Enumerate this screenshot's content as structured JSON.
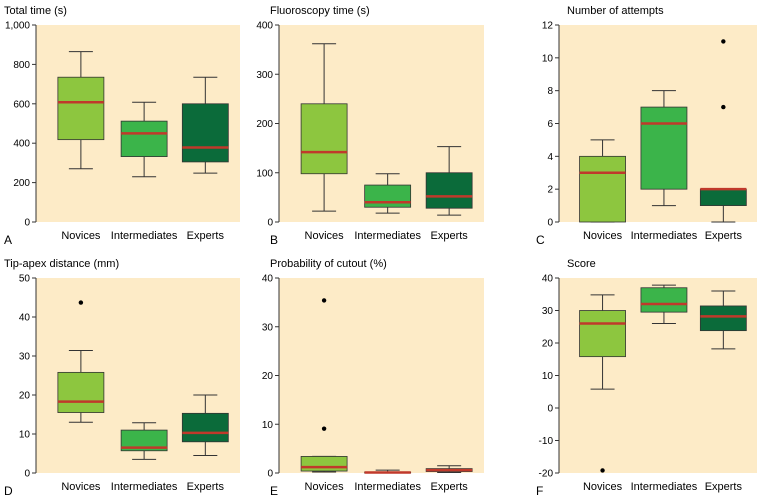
{
  "chart_data": [
    {
      "type": "box",
      "panel": "A",
      "title": "Total time (s)",
      "categories": [
        "Novices",
        "Intermediates",
        "Experts"
      ],
      "yticks": [
        0,
        200,
        400,
        600,
        800,
        1000
      ],
      "ytick_labels": [
        "0",
        "200",
        "400",
        "600",
        "800",
        "1,000"
      ],
      "ylim": [
        0,
        1000
      ],
      "boxes": [
        {
          "whisker_low": 270,
          "q1": 418,
          "median": 608,
          "q3": 735,
          "whisker_high": 865,
          "outliers": [],
          "color": "#8dc63f"
        },
        {
          "whisker_low": 230,
          "q1": 332,
          "median": 450,
          "q3": 512,
          "whisker_high": 608,
          "outliers": [],
          "color": "#3bb44a"
        },
        {
          "whisker_low": 248,
          "q1": 305,
          "median": 378,
          "q3": 600,
          "whisker_high": 735,
          "outliers": [],
          "color": "#0b6b3a"
        }
      ]
    },
    {
      "type": "box",
      "panel": "B",
      "title": "Fluoroscopy time (s)",
      "categories": [
        "Novices",
        "Intermediates",
        "Experts"
      ],
      "yticks": [
        0,
        100,
        200,
        300,
        400
      ],
      "ytick_labels": [
        "0",
        "100",
        "200",
        "300",
        "400"
      ],
      "ylim": [
        0,
        400
      ],
      "boxes": [
        {
          "whisker_low": 22,
          "q1": 98,
          "median": 142,
          "q3": 240,
          "whisker_high": 362,
          "outliers": [],
          "color": "#8dc63f"
        },
        {
          "whisker_low": 18,
          "q1": 30,
          "median": 40,
          "q3": 75,
          "whisker_high": 98,
          "outliers": [],
          "color": "#3bb44a"
        },
        {
          "whisker_low": 14,
          "q1": 28,
          "median": 52,
          "q3": 100,
          "whisker_high": 153,
          "outliers": [],
          "color": "#0b6b3a"
        }
      ]
    },
    {
      "type": "box",
      "panel": "C",
      "title": "Number of attempts",
      "categories": [
        "Novices",
        "Intermediates",
        "Experts"
      ],
      "yticks": [
        0,
        2,
        4,
        6,
        8,
        10,
        12
      ],
      "ytick_labels": [
        "0",
        "2",
        "4",
        "6",
        "8",
        "10",
        "12"
      ],
      "ylim": [
        0,
        12
      ],
      "boxes": [
        {
          "whisker_low": 0,
          "q1": 0,
          "median": 3,
          "q3": 4,
          "whisker_high": 5,
          "outliers": [],
          "color": "#8dc63f"
        },
        {
          "whisker_low": 1,
          "q1": 2,
          "median": 6,
          "q3": 7,
          "whisker_high": 8,
          "outliers": [],
          "color": "#3bb44a"
        },
        {
          "whisker_low": 0,
          "q1": 1,
          "median": 2,
          "q3": 2,
          "whisker_high": 2,
          "outliers": [
            7,
            11
          ],
          "color": "#0b6b3a"
        }
      ]
    },
    {
      "type": "box",
      "panel": "D",
      "title": "Tip-apex distance (mm)",
      "categories": [
        "Novices",
        "Intermediates",
        "Experts"
      ],
      "yticks": [
        0,
        10,
        20,
        30,
        40,
        50
      ],
      "ytick_labels": [
        "0",
        "10",
        "20",
        "30",
        "40",
        "50"
      ],
      "ylim": [
        0,
        50
      ],
      "boxes": [
        {
          "whisker_low": 13,
          "q1": 15.5,
          "median": 18.3,
          "q3": 25.8,
          "whisker_high": 31.4,
          "outliers": [
            43.7
          ],
          "color": "#8dc63f"
        },
        {
          "whisker_low": 3.5,
          "q1": 5.7,
          "median": 6.5,
          "q3": 11,
          "whisker_high": 12.9,
          "outliers": [],
          "color": "#3bb44a"
        },
        {
          "whisker_low": 4.5,
          "q1": 8,
          "median": 10.3,
          "q3": 15.3,
          "whisker_high": 20,
          "outliers": [],
          "color": "#0b6b3a"
        }
      ]
    },
    {
      "type": "box",
      "panel": "E",
      "title": "Probability of cutout (%)",
      "categories": [
        "Novices",
        "Intermediates",
        "Experts"
      ],
      "yticks": [
        0,
        10,
        20,
        30,
        40
      ],
      "ytick_labels": [
        "0",
        "10",
        "20",
        "30",
        "40"
      ],
      "ylim": [
        0,
        40
      ],
      "boxes": [
        {
          "whisker_low": 0.2,
          "q1": 0.4,
          "median": 1.2,
          "q3": 3.4,
          "whisker_high": 3.4,
          "outliers": [
            9.1,
            35.4
          ],
          "color": "#8dc63f"
        },
        {
          "whisker_low": 0,
          "q1": 0,
          "median": 0.1,
          "q3": 0.2,
          "whisker_high": 0.6,
          "outliers": [],
          "color": "#3bb44a"
        },
        {
          "whisker_low": 0.1,
          "q1": 0.3,
          "median": 0.6,
          "q3": 0.9,
          "whisker_high": 1.5,
          "outliers": [],
          "color": "#0b6b3a"
        }
      ]
    },
    {
      "type": "box",
      "panel": "F",
      "title": "Score",
      "categories": [
        "Novices",
        "Intermediates",
        "Experts"
      ],
      "yticks": [
        -20,
        -10,
        0,
        10,
        20,
        30,
        40
      ],
      "ytick_labels": [
        "-20",
        "-10",
        "0",
        "10",
        "20",
        "30",
        "40"
      ],
      "ylim": [
        -20,
        40
      ],
      "boxes": [
        {
          "whisker_low": 5.8,
          "q1": 15.8,
          "median": 26,
          "q3": 30,
          "whisker_high": 34.8,
          "outliers": [
            -19.2
          ],
          "color": "#8dc63f"
        },
        {
          "whisker_low": 26,
          "q1": 29.5,
          "median": 32,
          "q3": 37,
          "whisker_high": 37.8,
          "outliers": [],
          "color": "#3bb44a"
        },
        {
          "whisker_low": 18.2,
          "q1": 23.8,
          "median": 28.2,
          "q3": 31.4,
          "whisker_high": 36,
          "outliers": [],
          "color": "#0b6b3a"
        }
      ]
    }
  ],
  "colors": {
    "plot_background": "#fdebc7",
    "median_line": "#c0392b",
    "novices": "#8dc63f",
    "intermediates": "#3bb44a",
    "experts": "#0b6b3a"
  }
}
